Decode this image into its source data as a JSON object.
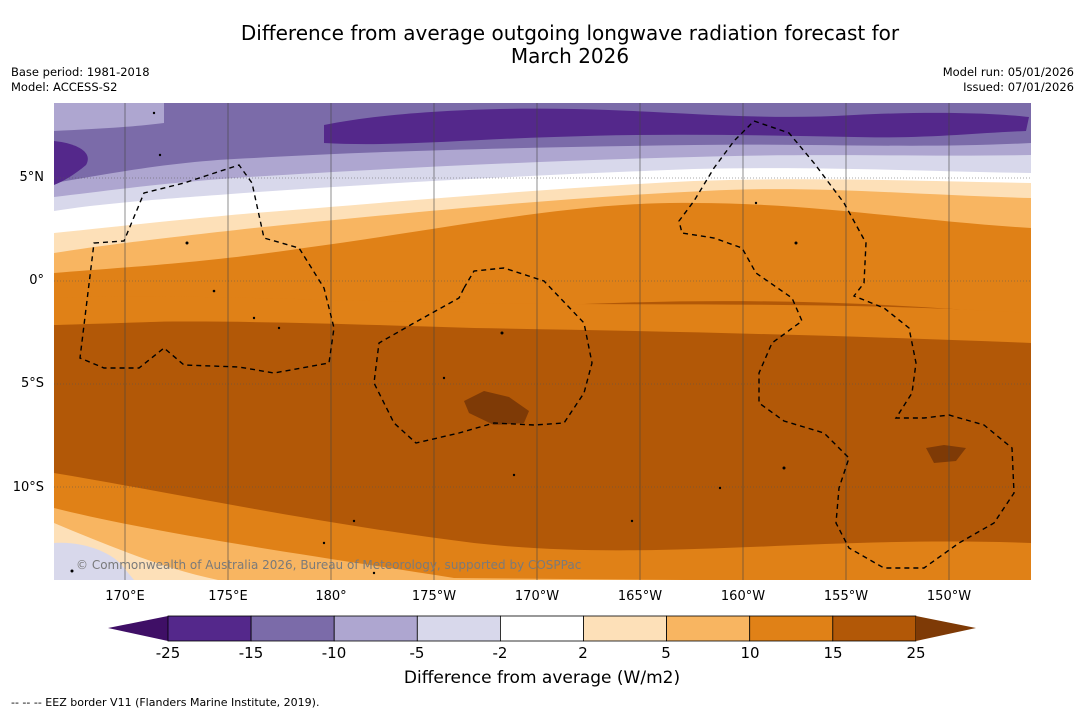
{
  "title_line1": "Difference from average outgoing longwave radiation forecast for",
  "title_line2": "March 2026",
  "base_period": "Base period: 1981-2018",
  "model": "Model: ACCESS-S2",
  "model_run": "Model run: 05/01/2026",
  "issued": "Issued: 07/01/2026",
  "lat_ticks": [
    "5°N",
    "0°",
    "5°S",
    "10°S"
  ],
  "lon_ticks": [
    "170°E",
    "175°E",
    "180°",
    "175°W",
    "170°W",
    "165°W",
    "160°W",
    "155°W",
    "150°W"
  ],
  "copyright": "© Commonwealth of Australia 2026, Bureau of Meteorology, supported by COSPPac",
  "colorbar": {
    "labels": [
      "-25",
      "-15",
      "-10",
      "-5",
      "-2",
      "2",
      "5",
      "10",
      "15",
      "25"
    ],
    "colors": [
      "#3f0f66",
      "#54288b",
      "#7b6ba9",
      "#aea6d0",
      "#d8d8eb",
      "#ffffff",
      "#fde0b8",
      "#f8b561",
      "#e08117",
      "#b25807",
      "#7e3a06"
    ],
    "title": "Difference from average (W/m2)"
  },
  "footer": "--  --  -- EEZ border V11 (Flanders Marine Institute, 2019)."
}
